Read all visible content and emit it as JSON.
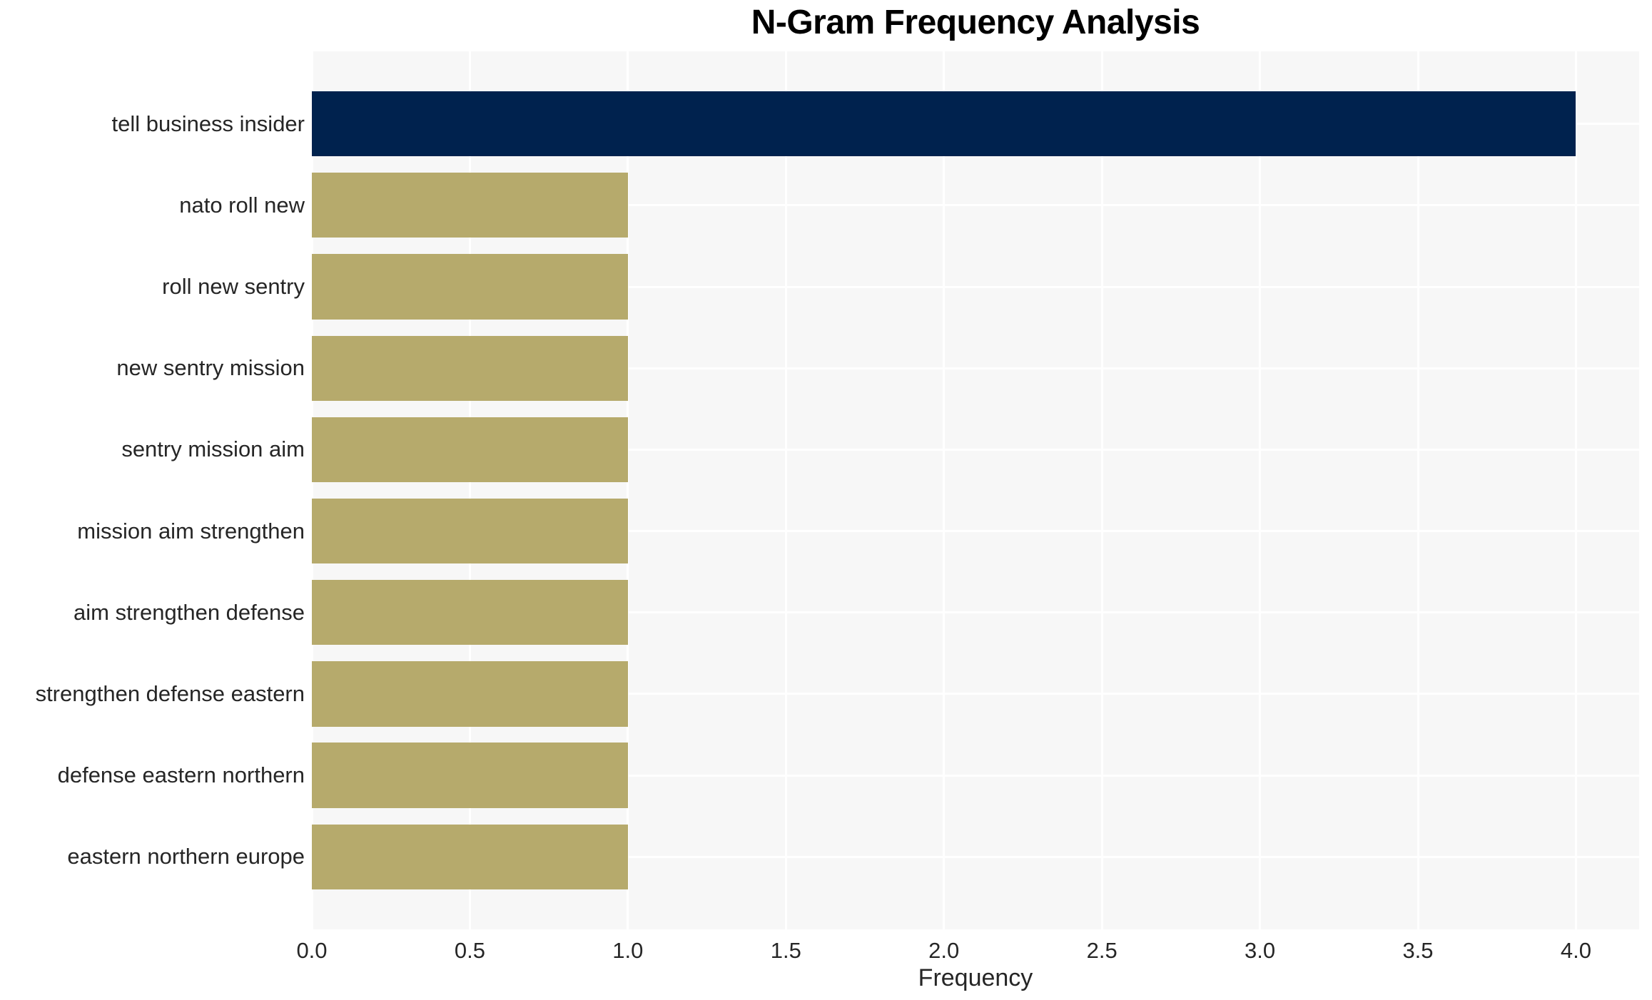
{
  "chart_data": {
    "type": "bar",
    "orientation": "horizontal",
    "title": "N-Gram Frequency Analysis",
    "categories": [
      "tell business insider",
      "nato roll new",
      "roll new sentry",
      "new sentry mission",
      "sentry mission aim",
      "mission aim strengthen",
      "aim strengthen defense",
      "strengthen defense eastern",
      "defense eastern northern",
      "eastern northern europe"
    ],
    "values": [
      4,
      1,
      1,
      1,
      1,
      1,
      1,
      1,
      1,
      1
    ],
    "bar_colors": [
      "#00224e",
      "#b6aa6c",
      "#b6aa6c",
      "#b6aa6c",
      "#b6aa6c",
      "#b6aa6c",
      "#b6aa6c",
      "#b6aa6c",
      "#b6aa6c",
      "#b6aa6c"
    ],
    "xlabel": "Frequency",
    "ylabel": "",
    "xlim": [
      0,
      4.2
    ],
    "xticks": [
      0,
      0.5,
      1,
      1.5,
      2,
      2.5,
      3,
      3.5,
      4
    ],
    "xtick_labels": [
      "0.0",
      "0.5",
      "1.0",
      "1.5",
      "2.0",
      "2.5",
      "3.0",
      "3.5",
      "4.0"
    ],
    "grid": true,
    "legend": "none",
    "colors": {
      "plot_background": "#f7f7f7",
      "grid_line": "#ffffff",
      "text": "#262626",
      "title_text": "#000000",
      "max_bar": "#00224e",
      "default_bar": "#b6aa6c"
    }
  }
}
